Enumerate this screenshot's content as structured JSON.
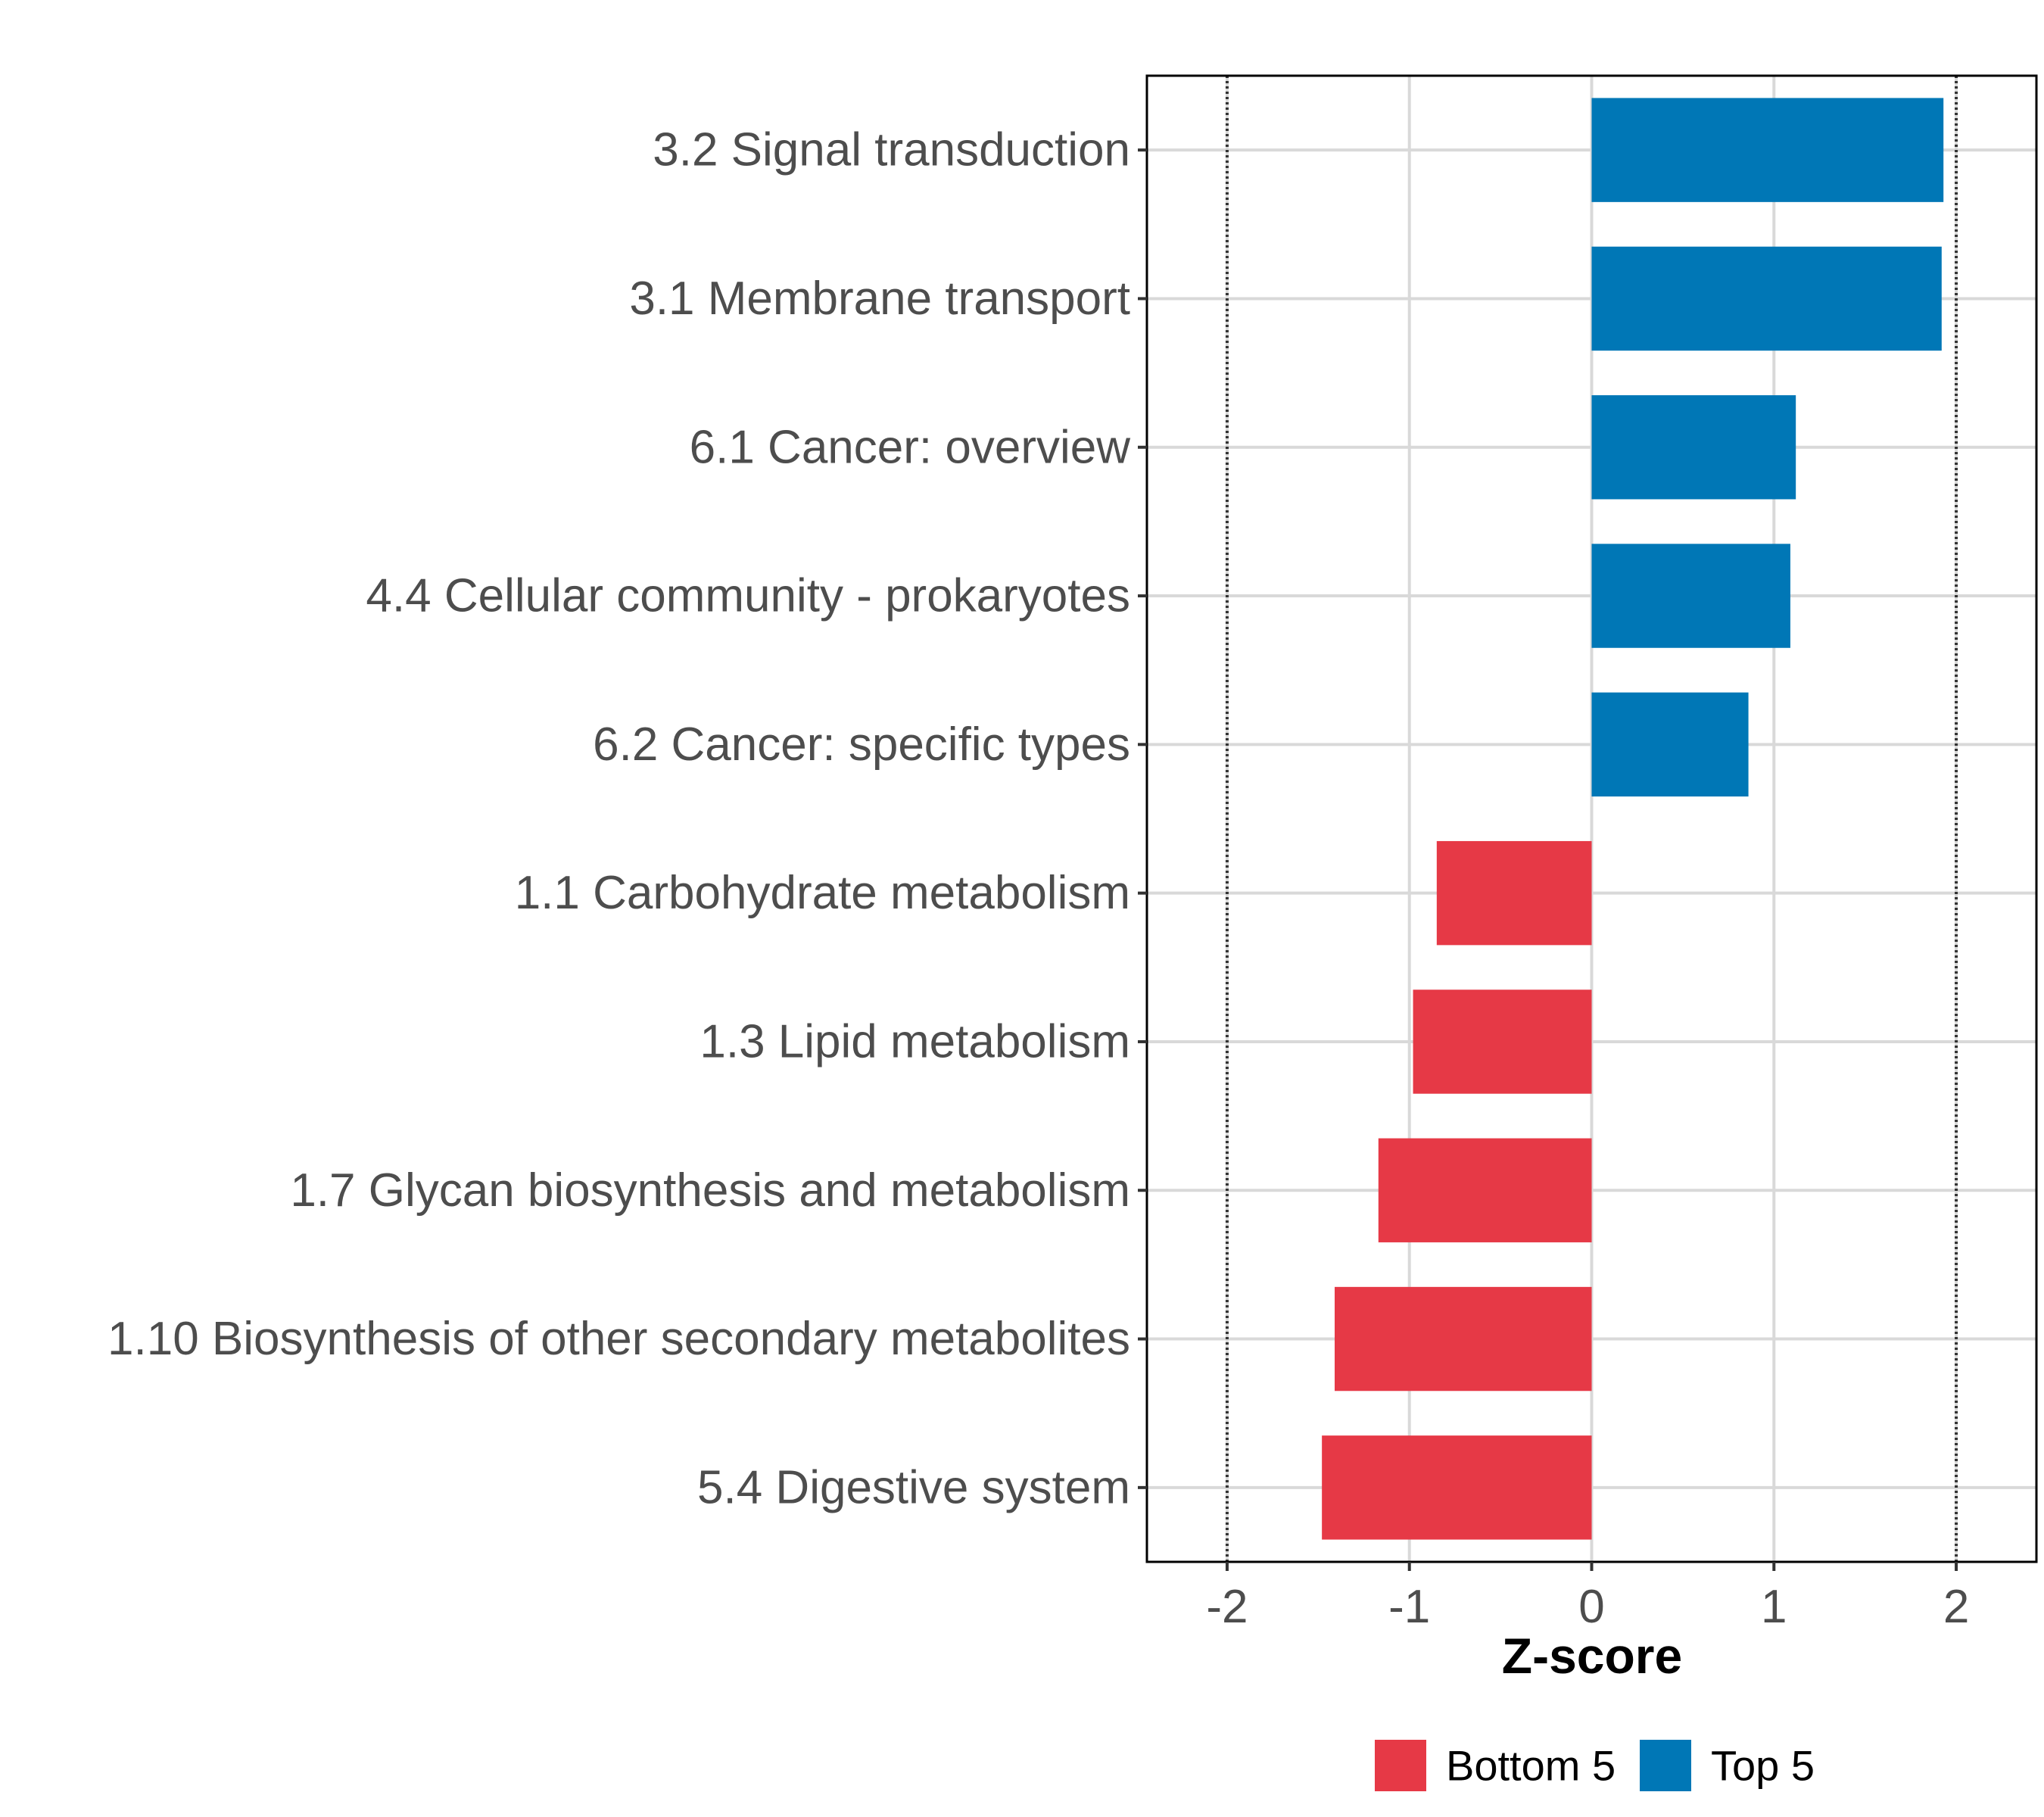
{
  "chart_data": {
    "type": "bar",
    "orientation": "horizontal",
    "xlabel": "Z-score",
    "ylabel": "",
    "xlim": [
      -2.44,
      2.44
    ],
    "xticks": [
      -2,
      -1,
      0,
      1,
      2
    ],
    "xtick_labels": [
      "-2",
      "-1",
      "0",
      "1",
      "2"
    ],
    "reference_lines": [
      -2,
      2
    ],
    "grid": true,
    "legend_position": "bottom",
    "legend": [
      {
        "label": "Bottom 5",
        "color": "#e63946"
      },
      {
        "label": "Top 5",
        "color": "#0077b6"
      }
    ],
    "categories": [
      "3.2 Signal transduction",
      "3.1 Membrane transport",
      "6.1 Cancer: overview",
      "4.4 Cellular community - prokaryotes",
      "6.2 Cancer: specific types",
      "1.1 Carbohydrate metabolism",
      "1.3 Lipid metabolism",
      "1.7 Glycan biosynthesis and metabolism",
      "1.10 Biosynthesis of other secondary metabolites",
      "5.4 Digestive system"
    ],
    "values": [
      1.93,
      1.92,
      1.12,
      1.09,
      0.86,
      -0.85,
      -0.98,
      -1.17,
      -1.41,
      -1.48
    ],
    "groups": [
      "Top 5",
      "Top 5",
      "Top 5",
      "Top 5",
      "Top 5",
      "Bottom 5",
      "Bottom 5",
      "Bottom 5",
      "Bottom 5",
      "Bottom 5"
    ]
  }
}
